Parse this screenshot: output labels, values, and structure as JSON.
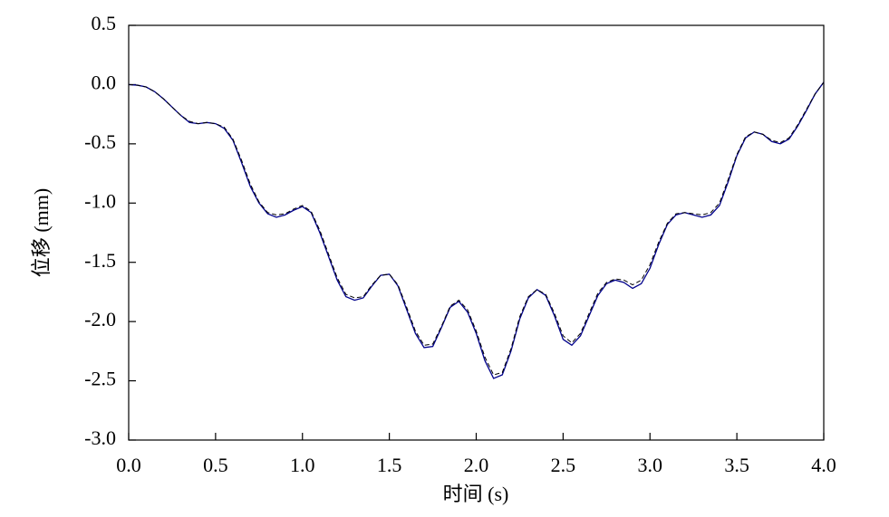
{
  "chart_data": {
    "type": "line",
    "x_label": "时间 (s)",
    "y_label": "位移 (mm)",
    "xlim": [
      0,
      4
    ],
    "ylim": [
      -3,
      0.5
    ],
    "xticks": [
      {
        "value": 0,
        "label": "0.0"
      },
      0.5,
      {
        "value": 1,
        "label": "1.0"
      },
      1.5,
      {
        "value": 2,
        "label": "2.0"
      },
      2.5,
      {
        "value": 3,
        "label": "3.0"
      },
      3.5,
      {
        "value": 4,
        "label": "4.0"
      }
    ],
    "yticks": [
      0.5,
      {
        "value": 0,
        "label": "0.0"
      },
      -0.5,
      {
        "value": -1,
        "label": "-1.0"
      },
      -1.5,
      {
        "value": -2,
        "label": "-2.0"
      },
      -2.5,
      {
        "value": -3,
        "label": "-3.0"
      }
    ],
    "grid": false,
    "x": [
      0,
      0.05,
      0.1,
      0.15,
      0.2,
      0.25,
      0.3,
      0.35,
      0.4,
      0.45,
      0.5,
      0.55,
      0.6,
      0.65,
      0.7,
      0.75,
      0.8,
      0.85,
      0.9,
      0.95,
      1,
      1.05,
      1.1,
      1.15,
      1.2,
      1.25,
      1.3,
      1.35,
      1.4,
      1.45,
      1.5,
      1.55,
      1.6,
      1.65,
      1.7,
      1.75,
      1.8,
      1.85,
      1.9,
      1.95,
      2,
      2.05,
      2.1,
      2.15,
      2.2,
      2.25,
      2.3,
      2.35,
      2.4,
      2.45,
      2.5,
      2.55,
      2.6,
      2.65,
      2.7,
      2.75,
      2.8,
      2.85,
      2.9,
      2.95,
      3,
      3.05,
      3.1,
      3.15,
      3.2,
      3.25,
      3.3,
      3.35,
      3.4,
      3.45,
      3.5,
      3.55,
      3.6,
      3.65,
      3.7,
      3.75,
      3.8,
      3.85,
      3.9,
      3.95,
      4
    ],
    "series": [
      {
        "color": "#00008b",
        "dash": false,
        "values": [
          0,
          -0.005,
          -0.02,
          -0.06,
          -0.12,
          -0.19,
          -0.26,
          -0.32,
          -0.33,
          -0.32,
          -0.33,
          -0.37,
          -0.47,
          -0.66,
          -0.86,
          -1.0,
          -1.09,
          -1.12,
          -1.1,
          -1.06,
          -1.03,
          -1.08,
          -1.25,
          -1.45,
          -1.65,
          -1.79,
          -1.82,
          -1.8,
          -1.7,
          -1.61,
          -1.6,
          -1.7,
          -1.9,
          -2.1,
          -2.22,
          -2.21,
          -2.05,
          -1.88,
          -1.83,
          -1.92,
          -2.1,
          -2.33,
          -2.48,
          -2.45,
          -2.25,
          -1.98,
          -1.8,
          -1.73,
          -1.78,
          -1.95,
          -2.15,
          -2.2,
          -2.12,
          -1.95,
          -1.78,
          -1.68,
          -1.65,
          -1.67,
          -1.72,
          -1.68,
          -1.55,
          -1.35,
          -1.18,
          -1.1,
          -1.08,
          -1.1,
          -1.12,
          -1.1,
          -1.02,
          -0.82,
          -0.6,
          -0.45,
          -0.4,
          -0.42,
          -0.48,
          -0.5,
          -0.46,
          -0.35,
          -0.22,
          -0.08,
          0.02
        ]
      },
      {
        "color": "#000000",
        "dash": true,
        "values": [
          0,
          -0.005,
          -0.02,
          -0.06,
          -0.12,
          -0.19,
          -0.26,
          -0.31,
          -0.33,
          -0.32,
          -0.33,
          -0.36,
          -0.46,
          -0.64,
          -0.84,
          -0.99,
          -1.08,
          -1.1,
          -1.09,
          -1.05,
          -1.02,
          -1.07,
          -1.23,
          -1.43,
          -1.63,
          -1.77,
          -1.8,
          -1.79,
          -1.69,
          -1.61,
          -1.6,
          -1.69,
          -1.88,
          -2.08,
          -2.2,
          -2.19,
          -2.04,
          -1.87,
          -1.82,
          -1.9,
          -2.08,
          -2.3,
          -2.45,
          -2.43,
          -2.23,
          -1.96,
          -1.79,
          -1.73,
          -1.77,
          -1.93,
          -2.12,
          -2.18,
          -2.1,
          -1.93,
          -1.76,
          -1.67,
          -1.64,
          -1.65,
          -1.69,
          -1.65,
          -1.52,
          -1.33,
          -1.17,
          -1.09,
          -1.08,
          -1.09,
          -1.1,
          -1.08,
          -1.0,
          -0.8,
          -0.59,
          -0.44,
          -0.4,
          -0.42,
          -0.47,
          -0.49,
          -0.45,
          -0.34,
          -0.21,
          -0.08,
          0.02
        ]
      }
    ]
  }
}
